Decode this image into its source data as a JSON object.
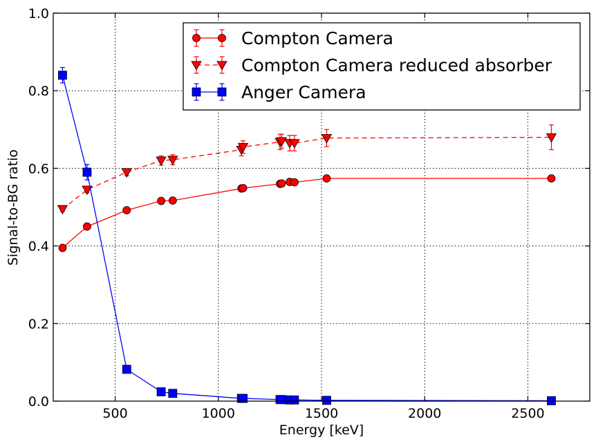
{
  "chart_data": {
    "type": "line",
    "title": "",
    "xlabel": "Energy [keV]",
    "ylabel": "Signal-to-BG ratio",
    "xlim": [
      200,
      2800
    ],
    "ylim": [
      0.0,
      1.0
    ],
    "xticks": [
      500,
      1000,
      1500,
      2000,
      2500
    ],
    "xtick_labels": [
      "500",
      "1000",
      "1500",
      "2000",
      "2500"
    ],
    "yticks": [
      0.0,
      0.2,
      0.4,
      0.6,
      0.8,
      1.0
    ],
    "ytick_labels": [
      "0.0",
      "0.2",
      "0.4",
      "0.6",
      "0.8",
      "1.0"
    ],
    "grid": true,
    "legend_position": "top-right",
    "series": [
      {
        "name": "Compton Camera",
        "color": "#ff0000",
        "line_style": "solid",
        "marker": "circle",
        "x": [
          245,
          364,
          556,
          723,
          779,
          1112,
          1120,
          1299,
          1307,
          1346,
          1369,
          1525,
          2614
        ],
        "y": [
          0.395,
          0.45,
          0.492,
          0.516,
          0.517,
          0.548,
          0.549,
          0.56,
          0.561,
          0.565,
          0.564,
          0.574,
          0.574
        ],
        "err": [
          0.004,
          0.004,
          0.004,
          0.004,
          0.004,
          0.005,
          0.005,
          0.005,
          0.005,
          0.005,
          0.005,
          0.005,
          0.006
        ]
      },
      {
        "name": "Compton Camera reduced absorber",
        "color": "#ff0000",
        "line_style": "dashed",
        "marker": "triangle-down",
        "x": [
          245,
          364,
          556,
          723,
          779,
          1112,
          1120,
          1299,
          1307,
          1346,
          1369,
          1525,
          2614
        ],
        "y": [
          0.495,
          0.545,
          0.59,
          0.62,
          0.622,
          0.648,
          0.655,
          0.668,
          0.67,
          0.665,
          0.665,
          0.678,
          0.68
        ],
        "err": [
          0.006,
          0.008,
          0.009,
          0.012,
          0.013,
          0.016,
          0.016,
          0.02,
          0.018,
          0.02,
          0.02,
          0.022,
          0.032
        ]
      },
      {
        "name": "Anger Camera",
        "color": "#0000ff",
        "line_style": "solid",
        "marker": "square",
        "x": [
          245,
          364,
          556,
          723,
          779,
          1112,
          1120,
          1299,
          1307,
          1346,
          1369,
          1525,
          2614
        ],
        "y": [
          0.84,
          0.59,
          0.082,
          0.024,
          0.02,
          0.007,
          0.007,
          0.004,
          0.004,
          0.003,
          0.003,
          0.002,
          0.001
        ],
        "err": [
          0.02,
          0.02,
          0.004,
          0.002,
          0.002,
          0.001,
          0.001,
          0.001,
          0.001,
          0.001,
          0.001,
          0.001,
          0.001
        ]
      }
    ]
  }
}
